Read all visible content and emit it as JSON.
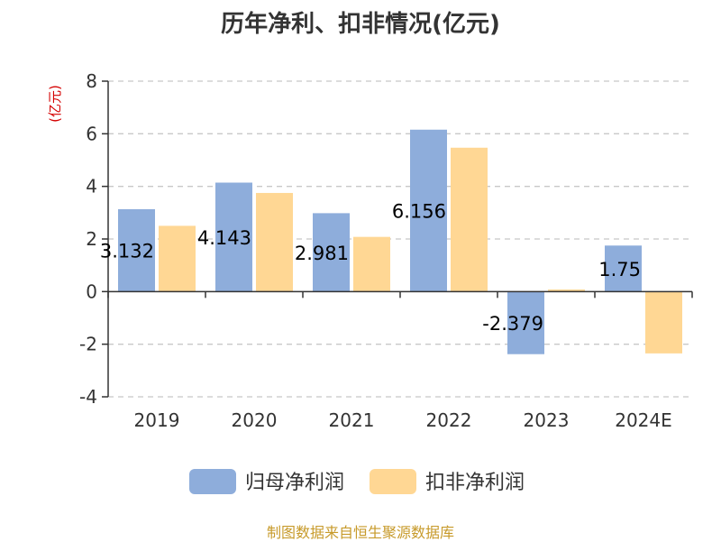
{
  "chart_data": {
    "type": "bar",
    "title": "历年净利、扣非情况(亿元)",
    "ylabel": "(亿元)",
    "xlabel": "",
    "categories": [
      "2019",
      "2020",
      "2021",
      "2022",
      "2023",
      "2024E"
    ],
    "series": [
      {
        "name": "归母净利润",
        "color": "#8eaddb",
        "values": [
          3.132,
          4.143,
          2.981,
          6.156,
          -2.379,
          1.75
        ],
        "labels": [
          "3.132",
          "4.143",
          "2.981",
          "6.156",
          "-2.379",
          "1.75"
        ]
      },
      {
        "name": "扣非净利润",
        "color": "#ffd794",
        "values": [
          2.5,
          3.75,
          2.08,
          5.47,
          0.08,
          -2.35
        ]
      }
    ],
    "ylim": [
      -4,
      8
    ],
    "yticks": [
      -4,
      -2,
      0,
      2,
      4,
      6,
      8
    ],
    "grid": true,
    "legend_position": "bottom"
  },
  "source_note": "制图数据来自恒生聚源数据库"
}
